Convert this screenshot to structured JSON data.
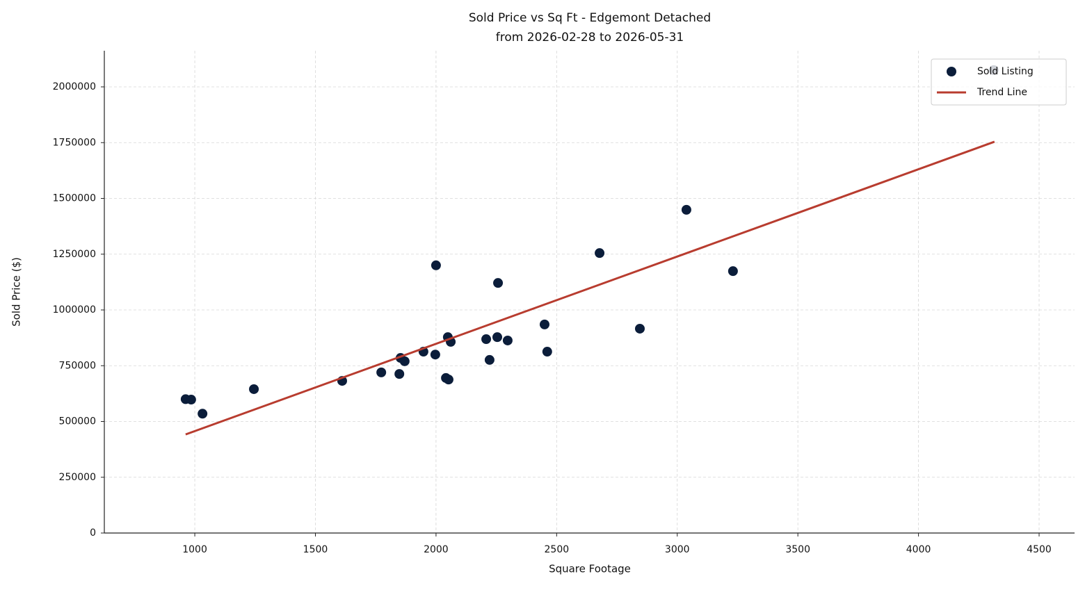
{
  "chart_data": {
    "type": "scatter",
    "title": "Sold Price vs Sq Ft - Edgemont Detached",
    "subtitle": "from 2026-02-28 to 2026-05-31",
    "xlabel": "Square Footage",
    "ylabel": "Sold Price ($)",
    "xlim": [
      625,
      4647
    ],
    "ylim": [
      0,
      2162000
    ],
    "xticks": [
      1000,
      1500,
      2000,
      2500,
      3000,
      3500,
      4000,
      4500
    ],
    "yticks": [
      0,
      250000,
      500000,
      750000,
      1000000,
      1250000,
      1500000,
      1750000,
      2000000
    ],
    "grid": true,
    "legend": "upper right",
    "series": [
      {
        "name": "Sold Listing",
        "type": "scatter",
        "color": "#0b1d3a",
        "x": [
          962,
          985,
          1032,
          1245,
          1611,
          1773,
          1848,
          1853,
          1870,
          1948,
          1997,
          2000,
          2041,
          2052,
          2049,
          2061,
          2208,
          2222,
          2254,
          2257,
          2297,
          2450,
          2461,
          2678,
          2845,
          3038,
          3231,
          4312
        ],
        "values": [
          600000,
          598000,
          535000,
          645000,
          682000,
          720000,
          713000,
          785000,
          770000,
          813000,
          800000,
          1200000,
          695000,
          688000,
          878000,
          857000,
          869000,
          776000,
          878000,
          1121000,
          863000,
          935000,
          813000,
          1255000,
          916000,
          1449000,
          1174000,
          2075000
        ]
      },
      {
        "name": "Trend Line",
        "type": "line",
        "color": "#b83c2f",
        "x": [
          962,
          4315
        ],
        "values": [
          442000,
          1754000
        ]
      }
    ]
  }
}
